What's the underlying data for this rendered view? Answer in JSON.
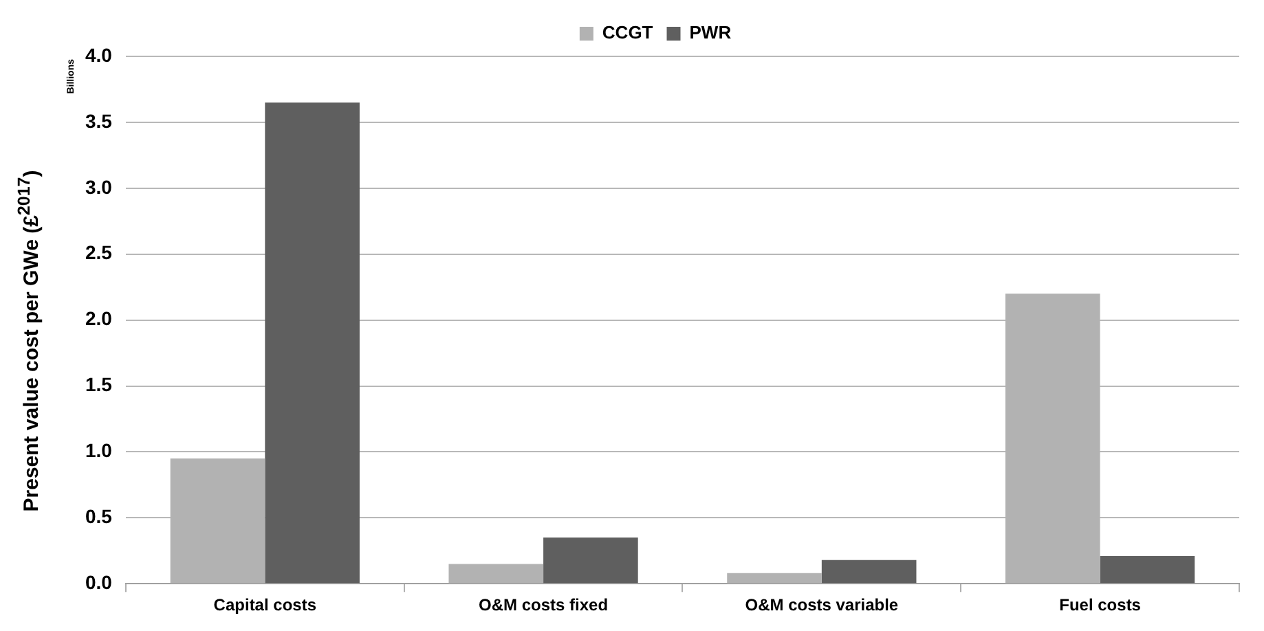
{
  "chart_data": {
    "type": "bar",
    "ylabel": "Present value cost per GWe (£$^{2017}$)",
    "annotations": [
      "Billions"
    ],
    "categories": [
      "Capital costs",
      "O&M costs fixed",
      "O&M costs variable",
      "Fuel costs"
    ],
    "series": [
      {
        "name": "CCGT",
        "color": "#b2b2b2",
        "values": [
          0.95,
          0.15,
          0.08,
          2.2
        ]
      },
      {
        "name": "PWR",
        "color": "#5f5f5f",
        "values": [
          3.65,
          0.35,
          0.18,
          0.21
        ]
      }
    ],
    "ylim": [
      0,
      4
    ],
    "yticks": [
      {
        "value": 0,
        "label": "0.0"
      },
      {
        "value": 0.5,
        "label": "0.5"
      },
      {
        "value": 1,
        "label": "1.0"
      },
      {
        "value": 1.5,
        "label": "1.5"
      },
      {
        "value": 2,
        "label": "2.0"
      },
      {
        "value": 2.5,
        "label": "2.5"
      },
      {
        "value": 3,
        "label": "3.0"
      },
      {
        "value": 3.5,
        "label": "3.5"
      },
      {
        "value": 4,
        "label": "4.0"
      }
    ],
    "grid": "y",
    "legend": "top"
  }
}
